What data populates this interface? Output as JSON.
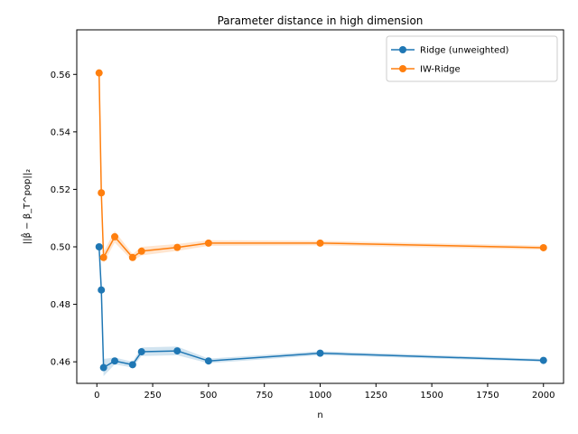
{
  "chart_data": {
    "type": "line",
    "title": "Parameter distance in high dimension",
    "xlabel": "n",
    "ylabel": "||β̂ − β_T^pop||₂",
    "xlim": [
      -90,
      2090
    ],
    "ylim": [
      0.4525,
      0.5755
    ],
    "xticks": [
      0,
      250,
      500,
      750,
      1000,
      1250,
      1500,
      1750,
      2000
    ],
    "yticks": [
      0.46,
      0.48,
      0.5,
      0.52,
      0.54,
      0.56
    ],
    "ytick_labels": [
      "0.46",
      "0.48",
      "0.50",
      "0.52",
      "0.54",
      "0.56"
    ],
    "grid": false,
    "legend_position": "top-right",
    "x": [
      10,
      20,
      30,
      80,
      160,
      200,
      360,
      500,
      1000,
      2000
    ],
    "series": [
      {
        "name": "Ridge (unweighted)",
        "color": "#1f77b4",
        "values": [
          0.5,
          0.485,
          0.458,
          0.4603,
          0.459,
          0.4635,
          0.4638,
          0.4603,
          0.463,
          0.4605
        ],
        "band_half_width": [
          0.0005,
          0.0018,
          0.003,
          0.0012,
          0.001,
          0.0015,
          0.0015,
          0.0008,
          0.0007,
          0.0005
        ]
      },
      {
        "name": "IW-Ridge",
        "color": "#ff7f0e",
        "values": [
          0.5605,
          0.5188,
          0.4963,
          0.5035,
          0.4963,
          0.4985,
          0.4998,
          0.5013,
          0.5013,
          0.4997
        ],
        "band_half_width": [
          0.0005,
          0.002,
          0.002,
          0.002,
          0.0012,
          0.0015,
          0.0012,
          0.001,
          0.0008,
          0.0007
        ]
      }
    ]
  }
}
